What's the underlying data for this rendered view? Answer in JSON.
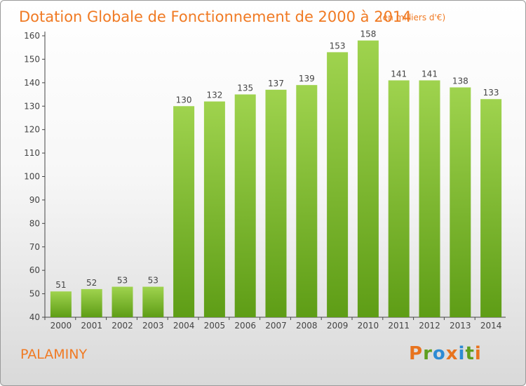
{
  "chart_data": {
    "type": "bar",
    "title": "Dotation Globale de Fonctionnement de 2000 à 2014",
    "subtitle": "(en milliers d'€)",
    "categories": [
      "2000",
      "2001",
      "2002",
      "2003",
      "2004",
      "2005",
      "2006",
      "2007",
      "2008",
      "2009",
      "2010",
      "2011",
      "2012",
      "2013",
      "2014"
    ],
    "values": [
      51,
      52,
      53,
      53,
      130,
      132,
      135,
      137,
      139,
      153,
      158,
      141,
      141,
      138,
      133
    ],
    "xlabel": "",
    "ylabel": "",
    "ylim": [
      40,
      160
    ],
    "yticks": [
      40,
      50,
      60,
      70,
      80,
      90,
      100,
      110,
      120,
      130,
      140,
      150,
      160
    ],
    "grid": false,
    "bar_color_top": "#9fd34e",
    "bar_color_bottom": "#5e9d16"
  },
  "footer": {
    "commune": "PALAMINY",
    "logo_letters": [
      "P",
      "r",
      "o",
      "x",
      "i",
      "t",
      "i"
    ],
    "logo_colors": [
      "#e8731e",
      "#5f9f1f",
      "#2d8bd4",
      "#e8731e",
      "#2d8bd4",
      "#5f9f1f",
      "#e8731e"
    ]
  }
}
